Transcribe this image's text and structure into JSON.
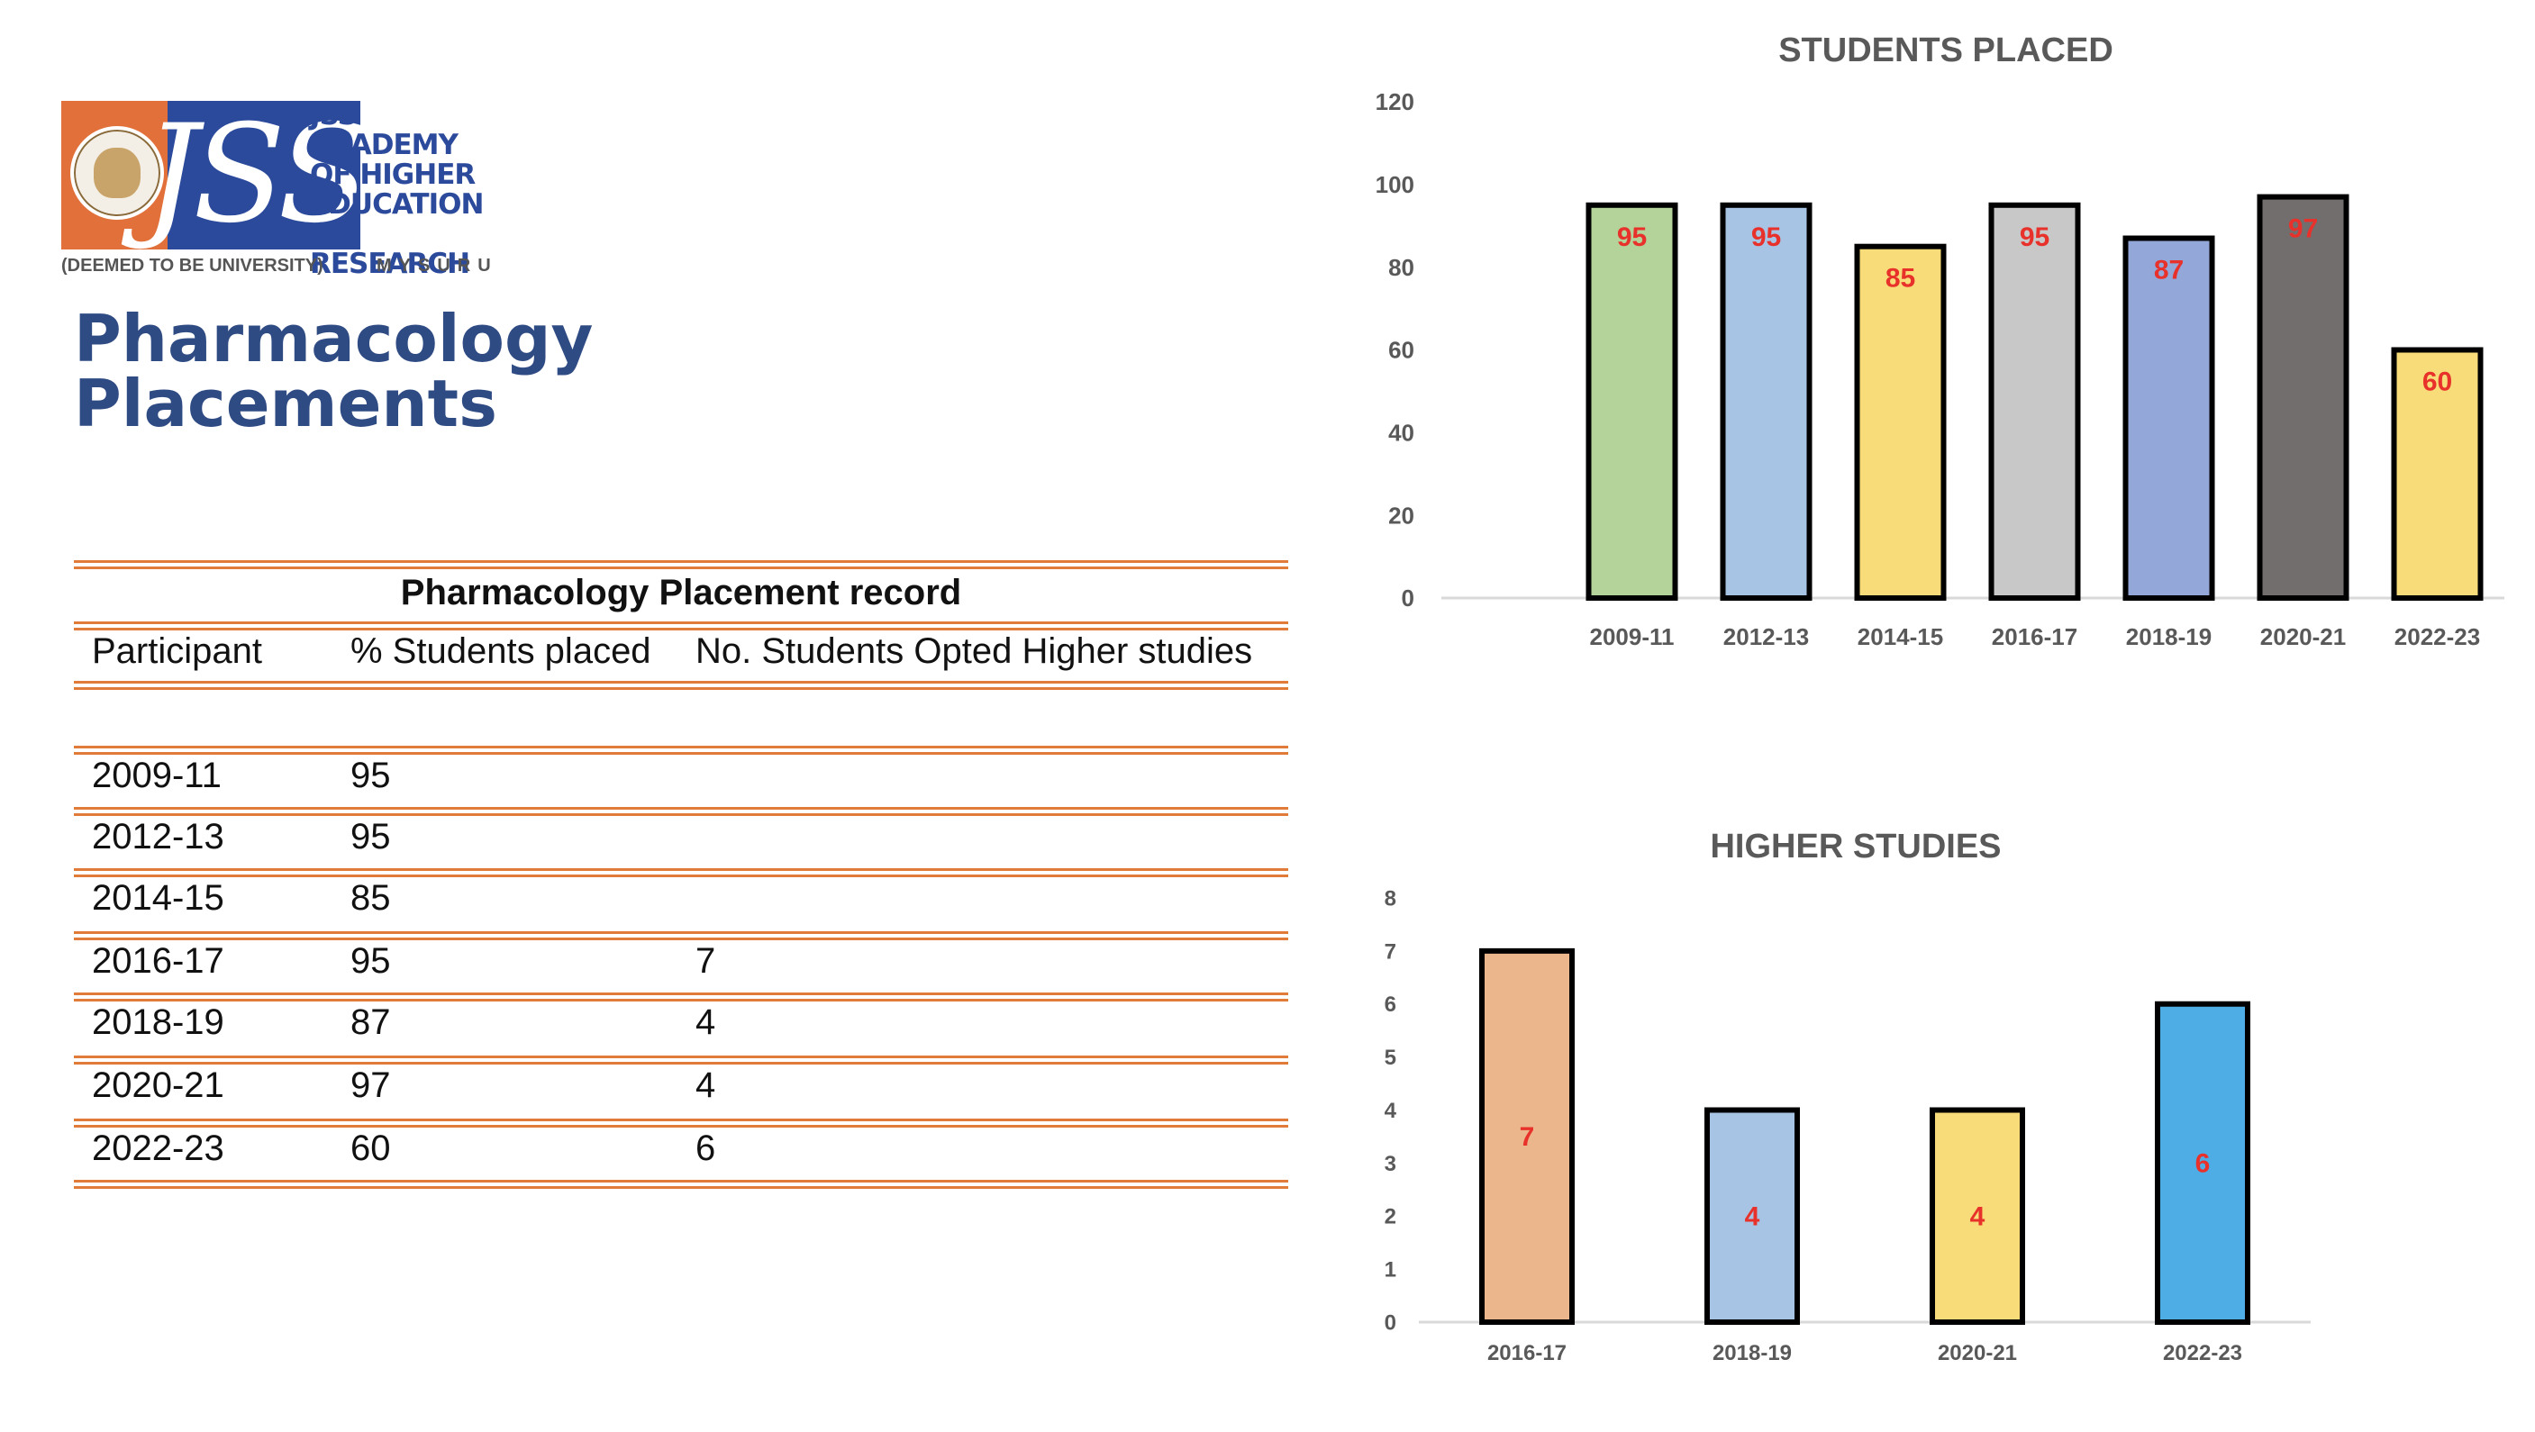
{
  "logo": {
    "lines": [
      "JSS",
      "ACADEMY",
      "OF HIGHER",
      "EDUCATION",
      "& RESEARCH"
    ],
    "mark": "JSS",
    "subtitle": "(DEEMED TO BE UNIVERSITY)",
    "city": "MYSURU"
  },
  "page": {
    "title_line1": "Pharmacology",
    "title_line2": "Placements"
  },
  "table": {
    "title": "Pharmacology Placement record",
    "headers": [
      "Participant",
      "% Students placed",
      "No. Students Opted Higher studies"
    ],
    "rows": [
      [
        "2009-11",
        "95",
        ""
      ],
      [
        "2012-13",
        "95",
        ""
      ],
      [
        "2014-15",
        "85",
        ""
      ],
      [
        "2016-17",
        "95",
        "7"
      ],
      [
        "2018-19",
        "87",
        "4"
      ],
      [
        "2020-21",
        "97",
        "4"
      ],
      [
        "2022-23",
        "60",
        "6"
      ]
    ]
  },
  "colors": {
    "accent_orange": "#E07B39",
    "title_blue": "#2F4B84",
    "data_label_red": "#E8312A"
  },
  "chart_data": [
    {
      "type": "bar",
      "title": "STUDENTS PLACED",
      "categories": [
        "2009-11",
        "2012-13",
        "2014-15",
        "2016-17",
        "2018-19",
        "2020-21",
        "2022-23"
      ],
      "values": [
        95,
        95,
        85,
        95,
        87,
        97,
        60
      ],
      "bar_colors": [
        "#B3D39B",
        "#A7C4E4",
        "#F8DC79",
        "#C8C8C8",
        "#93A8D8",
        "#736E6E",
        "#F8DC79"
      ],
      "ylim": [
        0,
        120
      ],
      "yticks": [
        0,
        20,
        40,
        60,
        80,
        100,
        120
      ],
      "xlabel": "",
      "ylabel": "",
      "grid": false,
      "data_labels": true
    },
    {
      "type": "bar",
      "title": "HIGHER STUDIES",
      "categories": [
        "2016-17",
        "2018-19",
        "2020-21",
        "2022-23"
      ],
      "values": [
        7,
        4,
        4,
        6
      ],
      "bar_colors": [
        "#EBB68C",
        "#A7C4E4",
        "#F8DC79",
        "#4FADE6"
      ],
      "ylim": [
        0,
        8
      ],
      "yticks": [
        0,
        1,
        2,
        3,
        4,
        5,
        6,
        7,
        8
      ],
      "xlabel": "",
      "ylabel": "",
      "grid": false,
      "data_labels": true
    }
  ]
}
